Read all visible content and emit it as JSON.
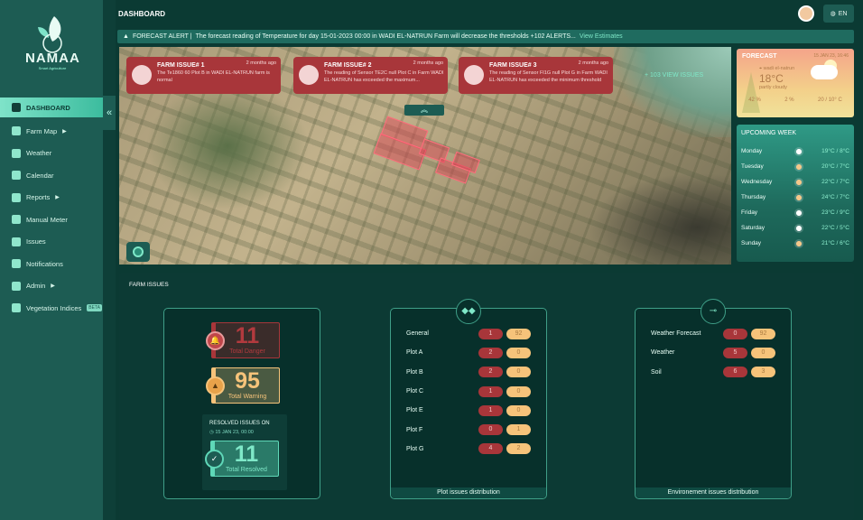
{
  "brand": {
    "name": "NAMAA",
    "tagline": "Smart Agriculture"
  },
  "sidebar": {
    "items": [
      {
        "label": "DASHBOARD",
        "icon": "grid-icon",
        "active": true
      },
      {
        "label": "Farm Map",
        "icon": "map-icon",
        "submenu": true
      },
      {
        "label": "Weather",
        "icon": "weather-icon"
      },
      {
        "label": "Calendar",
        "icon": "calendar-icon"
      },
      {
        "label": "Reports",
        "icon": "chart-icon",
        "submenu": true
      },
      {
        "label": "Manual Meter",
        "icon": "gauge-icon"
      },
      {
        "label": "Issues",
        "icon": "clock-icon"
      },
      {
        "label": "Notifications",
        "icon": "bell-icon"
      },
      {
        "label": "Admin",
        "icon": "hierarchy-icon",
        "submenu": true
      },
      {
        "label": "Vegetation Indices",
        "icon": "leaf-icon",
        "badge": "BETA"
      }
    ]
  },
  "header": {
    "title": "DASHBOARD",
    "language": "EN"
  },
  "alert": {
    "label": "FORECAST ALERT |",
    "text": "The forecast reading of Temperature for day 15-01-2023 00:00 in WADI EL-NATRUN Farm will decrease the thresholds +102 ALERTS...",
    "link": "View Estimates"
  },
  "farm_issues_top": [
    {
      "title": "FARM ISSUE# 1",
      "time": "2 months ago",
      "text": "The Te1860 60 Plot B in WADI EL-NATRUN farm is normal"
    },
    {
      "title": "FARM ISSUE# 2",
      "time": "2 months ago",
      "text": "The reading of Sensor TE2C null Plot C in Farm WADI EL-NATRUN has exceeded the maximum..."
    },
    {
      "title": "FARM ISSUE# 3",
      "time": "2 months ago",
      "text": "The reading of Sensor FI1G null Plot G in Farm WADI EL-NATRUN has exceeded the minimum threshold"
    }
  ],
  "view_more": "+ 103 VIEW ISSUES",
  "forecast": {
    "title": "FORECAST",
    "datetime": "15 JAN 23, 16:46",
    "location": "wadi el-natrun",
    "temperature": "18°C",
    "condition": "partly cloudy",
    "humidity": "42 %",
    "precipitation": "2 %",
    "range": "20 / 10° C"
  },
  "week": {
    "title": "UPCOMING WEEK",
    "days": [
      {
        "day": "Monday",
        "icon": "cloud",
        "temp": "19°C / 8°C"
      },
      {
        "day": "Tuesday",
        "icon": "sun",
        "temp": "20°C / 7°C"
      },
      {
        "day": "Wednesday",
        "icon": "sun",
        "temp": "22°C / 7°C"
      },
      {
        "day": "Thursday",
        "icon": "sun",
        "temp": "24°C / 7°C"
      },
      {
        "day": "Friday",
        "icon": "cloud",
        "temp": "23°C / 9°C"
      },
      {
        "day": "Saturday",
        "icon": "cloud",
        "temp": "22°C / 5°C"
      },
      {
        "day": "Sunday",
        "icon": "sun",
        "temp": "21°C / 6°C"
      }
    ]
  },
  "issues": {
    "title": "FARM ISSUES",
    "danger": {
      "value": "11",
      "label": "Total Danger"
    },
    "warning": {
      "value": "95",
      "label": "Total Warning"
    },
    "resolved": {
      "heading": "RESOLVED ISSUES ON",
      "date": "15 JAN 23, 00:00",
      "value": "11",
      "label": "Total Resolved"
    },
    "plot": {
      "title": "Plot issues distribution",
      "rows": [
        {
          "name": "General",
          "danger": "1",
          "warning": "92"
        },
        {
          "name": "Plot A",
          "danger": "2",
          "warning": "0"
        },
        {
          "name": "Plot B",
          "danger": "2",
          "warning": "0"
        },
        {
          "name": "Plot C",
          "danger": "1",
          "warning": "0"
        },
        {
          "name": "Plot E",
          "danger": "1",
          "warning": "0"
        },
        {
          "name": "Plot F",
          "danger": "0",
          "warning": "1"
        },
        {
          "name": "Plot G",
          "danger": "4",
          "warning": "2"
        }
      ]
    },
    "env": {
      "title": "Environement issues distribution",
      "rows": [
        {
          "name": "Weather Forecast",
          "danger": "0",
          "warning": "92"
        },
        {
          "name": "Weather",
          "danger": "5",
          "warning": "0"
        },
        {
          "name": "Soil",
          "danger": "6",
          "warning": "3"
        }
      ]
    }
  },
  "colors": {
    "sidebar": "#1d5c53",
    "background": "#0b3a33",
    "danger": "#a8363a",
    "warning": "#f6c37a",
    "accent": "#7fe8c8"
  }
}
